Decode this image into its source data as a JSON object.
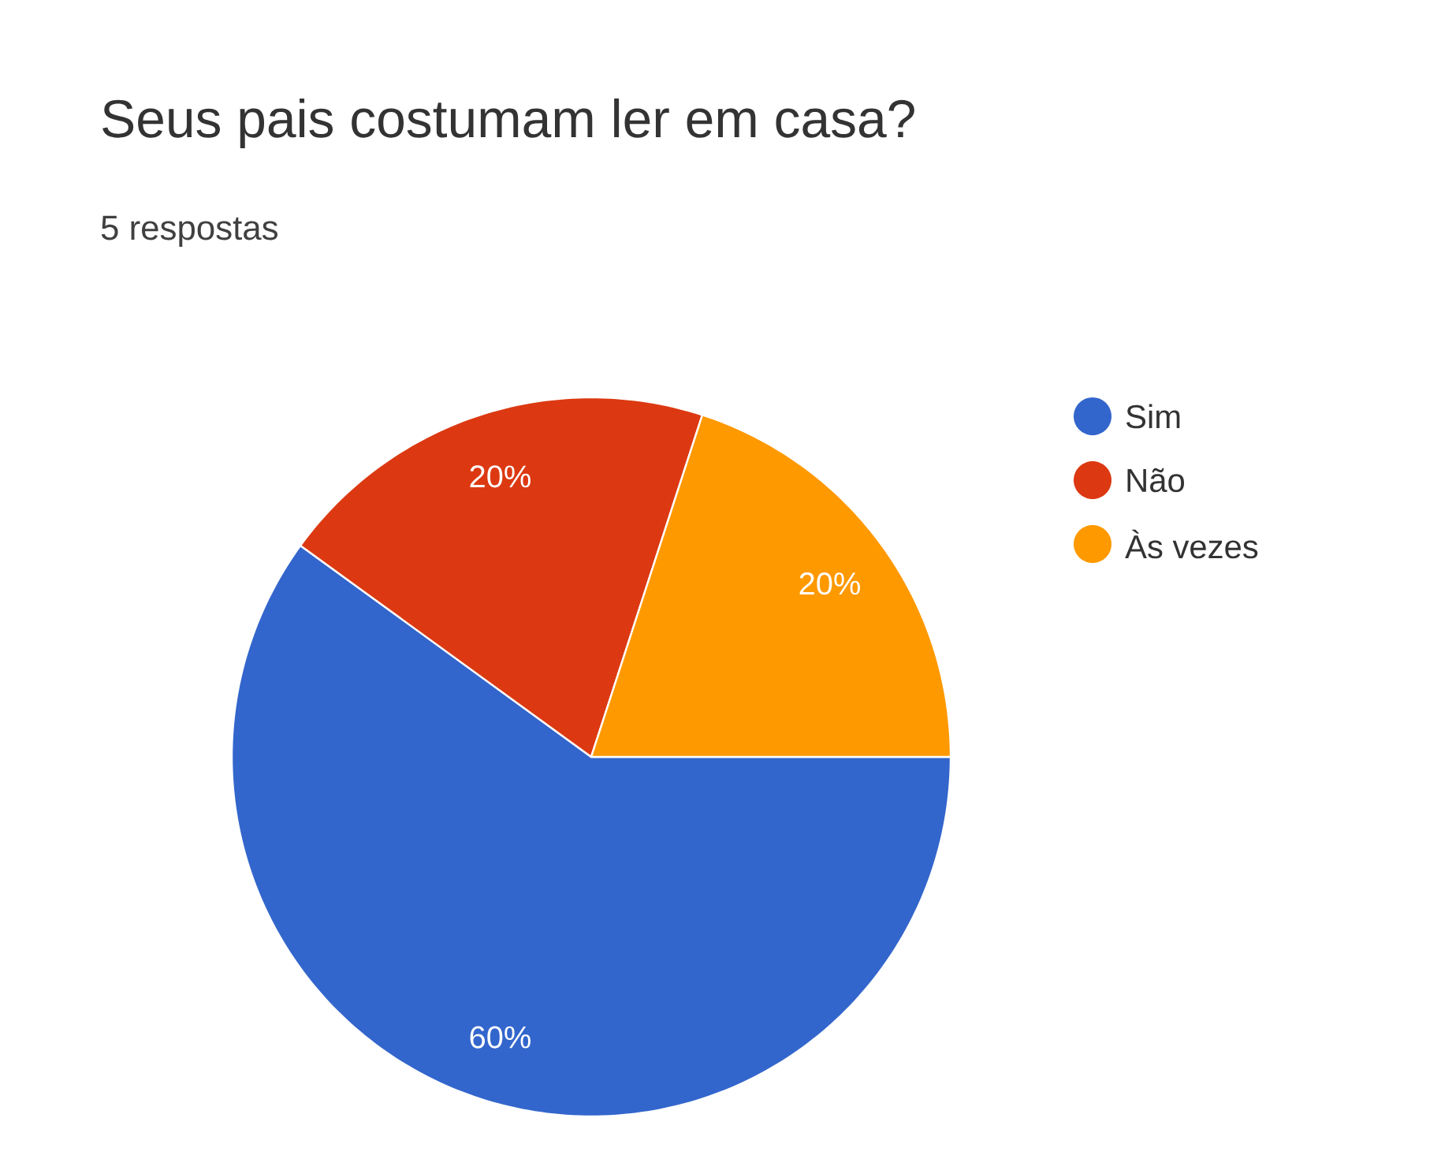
{
  "chart_data": {
    "type": "pie",
    "title": "Seus pais costumam ler em casa?",
    "subtitle": "5 respostas",
    "categories": [
      "Sim",
      "Não",
      "Às vezes"
    ],
    "values": [
      60,
      20,
      20
    ],
    "colors": [
      "#3366cc",
      "#dc3912",
      "#ff9900"
    ],
    "value_labels": [
      "60%",
      "20%",
      "20%"
    ],
    "legend": "right"
  }
}
